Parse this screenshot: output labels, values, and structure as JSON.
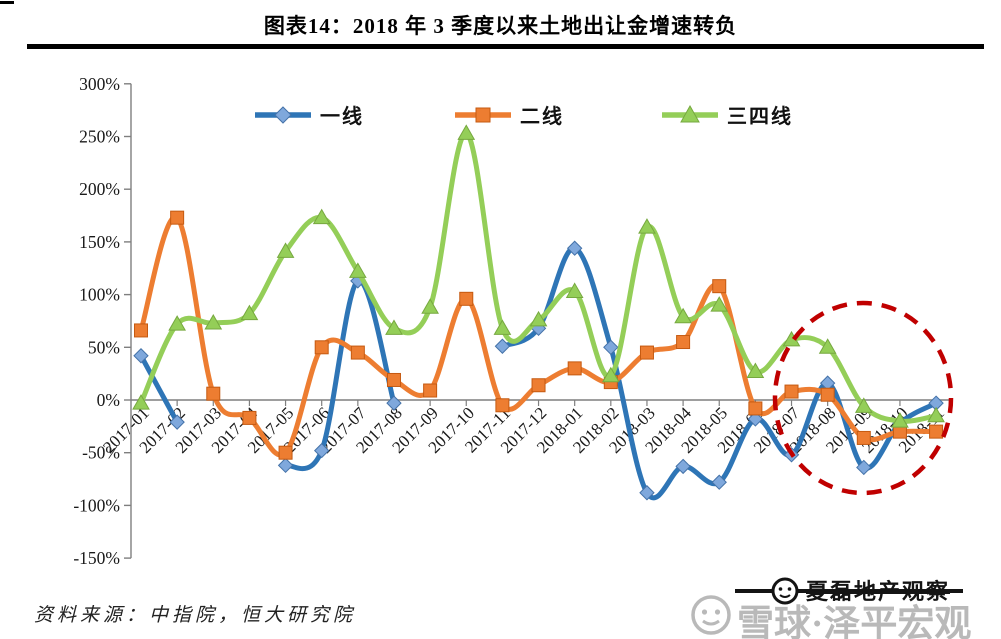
{
  "title": "图表14：2018 年 3 季度以来土地出让金增速转负",
  "source": "资料来源：中指院，恒大研究院",
  "watermark": {
    "strike_text": "夏磊地产观察",
    "main_text": "雪球·泽平宏观",
    "main_color": "#b9b9b9",
    "strike_color": "#141414"
  },
  "chart_data": {
    "type": "line",
    "x": [
      "2017-01",
      "2017-02",
      "2017-03",
      "2017-04",
      "2017-05",
      "2017-06",
      "2017-07",
      "2017-08",
      "2017-09",
      "2017-10",
      "2017-11",
      "2017-12",
      "2018-01",
      "2018-02",
      "2018-03",
      "2018-04",
      "2018-05",
      "2018-06",
      "2018-07",
      "2018-08",
      "2018-09",
      "2018-10",
      "2018-11"
    ],
    "series": [
      {
        "name": "一线",
        "color": "#2E75B6",
        "marker": "diamond",
        "marker_fill": "#7FA8DC",
        "marker_edge": "#4472A8",
        "values": [
          42,
          -21,
          null,
          null,
          -62,
          -48,
          113,
          -3,
          null,
          null,
          51,
          68,
          144,
          50,
          -88,
          -63,
          -78,
          -18,
          -52,
          16,
          -64,
          -22,
          -3
        ]
      },
      {
        "name": "二线",
        "color": "#ED7D31",
        "marker": "square",
        "marker_fill": "#ED7D31",
        "marker_edge": "#C55A11",
        "values": [
          66,
          173,
          6,
          -17,
          -50,
          50,
          45,
          19,
          9,
          96,
          -5,
          14,
          30,
          17,
          45,
          55,
          108,
          -8,
          8,
          5,
          -36,
          -30,
          -30
        ]
      },
      {
        "name": "三四线",
        "color": "#94CE58",
        "marker": "triangle",
        "marker_fill": "#94CE58",
        "marker_edge": "#76A83F",
        "values": [
          -3,
          72,
          73,
          82,
          141,
          173,
          122,
          68,
          88,
          253,
          68,
          76,
          103,
          23,
          164,
          79,
          90,
          27,
          57,
          50,
          -6,
          -20,
          -15
        ]
      }
    ],
    "ylim": [
      -150,
      300
    ],
    "ytick_step": 50,
    "ytick_labels": [
      "300%",
      "250%",
      "200%",
      "150%",
      "100%",
      "50%",
      "0%",
      "-50%",
      "-100%",
      "-150%"
    ],
    "grid": false,
    "legend_position": "top",
    "annotation": {
      "type": "dashed-ellipse",
      "color": "#C00000",
      "covers": "2018-08 to 2018-11"
    }
  }
}
